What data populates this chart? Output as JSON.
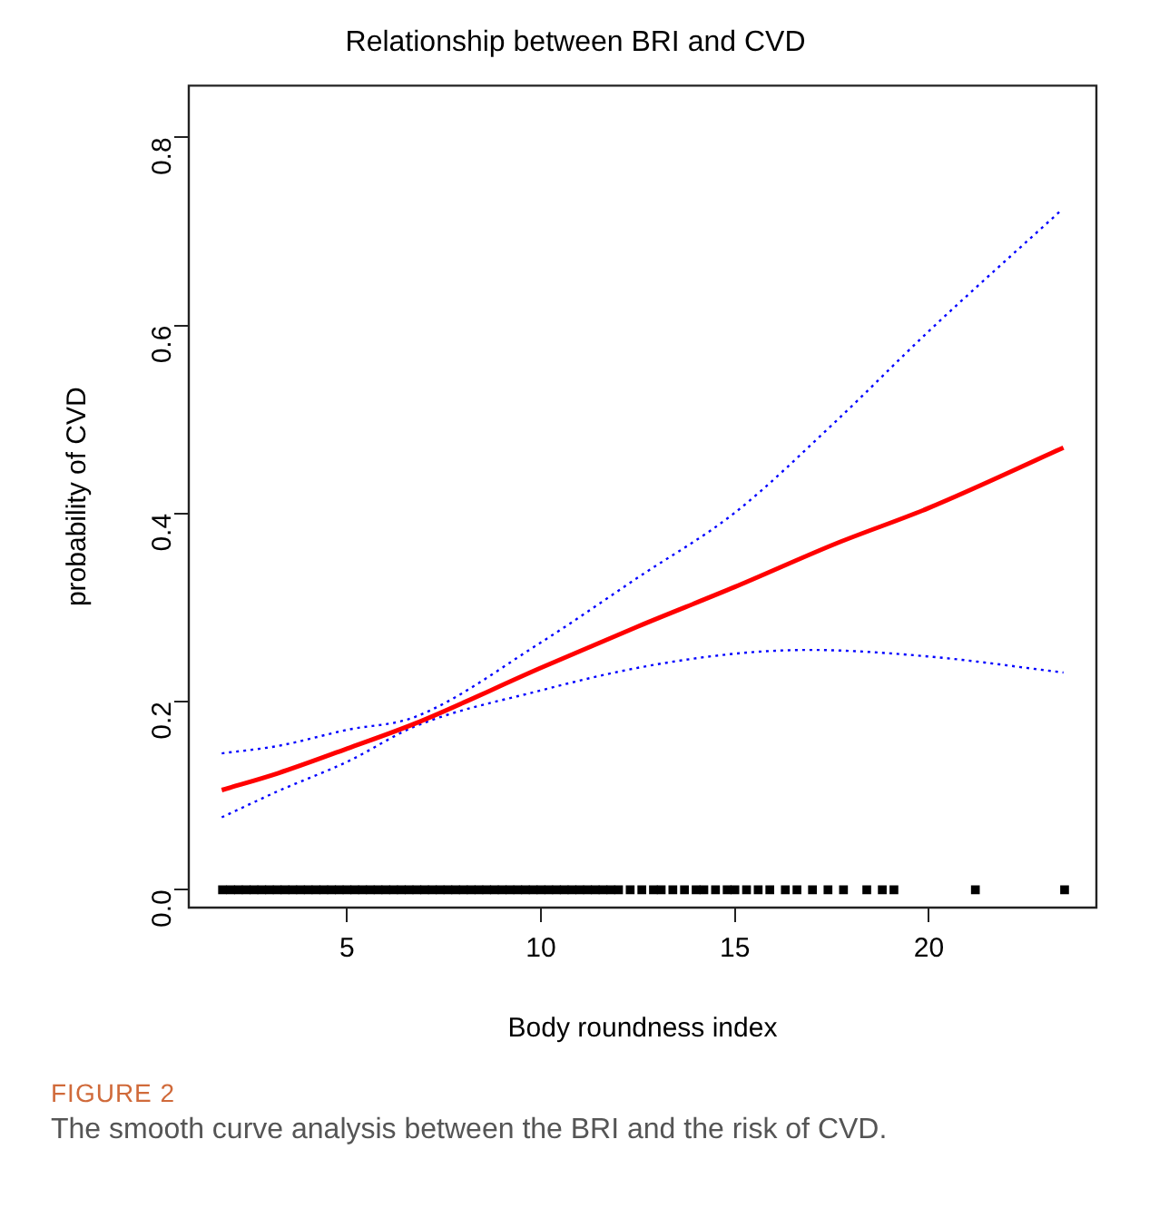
{
  "chart_data": {
    "type": "line",
    "title": "Relationship between BRI and CVD",
    "xlabel": "Body roundness index",
    "ylabel": "probability of CVD",
    "xlim": [
      0.92,
      24.32
    ],
    "xticks": [
      5,
      10,
      15,
      20
    ],
    "ylim": [
      -0.019,
      0.855
    ],
    "yticks": [
      {
        "value": 0,
        "label": "0.0"
      },
      0.2,
      0.4,
      0.6,
      0.8
    ],
    "grid": false,
    "legend": false,
    "series": [
      {
        "color": "#ff0000",
        "line_style": "solid",
        "x": [
          1.77,
          3.23,
          5,
          6.77,
          10,
          12.5,
          15,
          17.6,
          20,
          23.47
        ],
        "values": [
          0.106,
          0.124,
          0.15,
          0.177,
          0.236,
          0.28,
          0.322,
          0.368,
          0.406,
          0.47
        ]
      },
      {
        "color": "#0000ff",
        "line_style": "dotted",
        "x": [
          1.77,
          3.23,
          5,
          6.77,
          10,
          12.5,
          15,
          17.6,
          20,
          23.4
        ],
        "values": [
          0.145,
          0.153,
          0.17,
          0.184,
          0.263,
          0.332,
          0.401,
          0.498,
          0.594,
          0.722
        ]
      },
      {
        "color": "#0000ff",
        "line_style": "dotted",
        "x": [
          1.77,
          3.23,
          5,
          6.77,
          10,
          12.5,
          15,
          16.9,
          20,
          23.47
        ],
        "values": [
          0.077,
          0.105,
          0.136,
          0.174,
          0.212,
          0.236,
          0.251,
          0.255,
          0.248,
          0.231
        ]
      },
      {
        "type": "scatter",
        "color": "#000000",
        "x": [
          1.79,
          2.0,
          2.2,
          2.4,
          2.6,
          2.8,
          3.0,
          3.2,
          3.4,
          3.6,
          3.8,
          4.0,
          4.2,
          4.4,
          4.6,
          4.8,
          5.0,
          5.2,
          5.4,
          5.6,
          5.8,
          6.0,
          6.2,
          6.4,
          6.6,
          6.8,
          7.0,
          7.2,
          7.4,
          7.6,
          7.8,
          8.0,
          8.2,
          8.4,
          8.6,
          8.8,
          9.0,
          9.2,
          9.4,
          9.6,
          9.8,
          10.0,
          10.2,
          10.4,
          10.6,
          10.8,
          11.0,
          11.2,
          11.4,
          11.6,
          11.8,
          12.0,
          12.3,
          12.6,
          12.9,
          13.1,
          13.4,
          13.7,
          14.0,
          14.2,
          14.5,
          14.8,
          15.0,
          15.3,
          15.6,
          15.9,
          16.3,
          16.6,
          17.0,
          17.4,
          17.8,
          18.4,
          18.8,
          19.1,
          21.2,
          23.5
        ],
        "values": [
          0,
          0,
          0,
          0,
          0,
          0,
          0,
          0,
          0,
          0,
          0,
          0,
          0,
          0,
          0,
          0,
          0,
          0,
          0,
          0,
          0,
          0,
          0,
          0,
          0,
          0,
          0,
          0,
          0,
          0,
          0,
          0,
          0,
          0,
          0,
          0,
          0,
          0,
          0,
          0,
          0,
          0,
          0,
          0,
          0,
          0,
          0,
          0,
          0,
          0,
          0,
          0,
          0,
          0,
          0,
          0,
          0,
          0,
          0,
          0,
          0,
          0,
          0,
          0,
          0,
          0,
          0,
          0,
          0,
          0,
          0,
          0,
          0,
          0,
          0,
          0
        ]
      }
    ],
    "annotations": [
      "FIGURE 2",
      "The smooth curve analysis between the BRI and the risk of CVD."
    ]
  }
}
